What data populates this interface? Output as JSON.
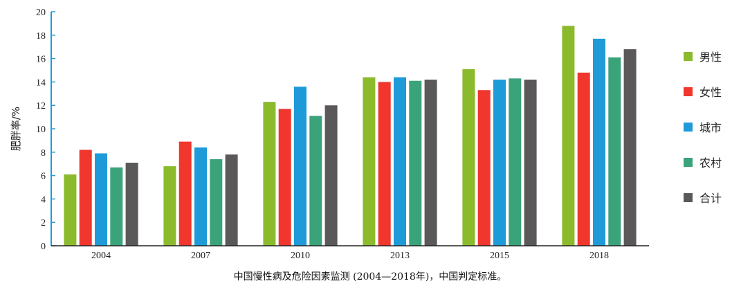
{
  "chart_data": {
    "type": "bar",
    "title": "",
    "caption": "中国慢性病及危险因素监测 (2004—2018年)，中国判定标准。",
    "xlabel": "",
    "ylabel": "肥胖率/%",
    "ylim": [
      0,
      20
    ],
    "yticks": [
      "0",
      "2",
      "4",
      "6",
      "8",
      "10",
      "12",
      "14",
      "16",
      "18",
      "20"
    ],
    "categories": [
      "2004",
      "2007",
      "2010",
      "2013",
      "2015",
      "2018"
    ],
    "legend_position": "right",
    "grid": false,
    "series": [
      {
        "name": "男性",
        "color": "#8bbb2d",
        "values": [
          6.1,
          6.8,
          12.3,
          14.4,
          15.1,
          18.8
        ]
      },
      {
        "name": "女性",
        "color": "#f0362d",
        "values": [
          8.2,
          8.9,
          11.7,
          14.0,
          13.3,
          14.8
        ]
      },
      {
        "name": "城市",
        "color": "#1f9ad9",
        "values": [
          7.9,
          8.4,
          13.6,
          14.4,
          14.2,
          17.7
        ]
      },
      {
        "name": "农村",
        "color": "#3aa37a",
        "values": [
          6.7,
          7.4,
          11.1,
          14.1,
          14.3,
          16.1
        ]
      },
      {
        "name": "合计",
        "color": "#5b5859",
        "values": [
          7.1,
          7.8,
          12.0,
          14.2,
          14.2,
          16.8
        ]
      }
    ]
  }
}
